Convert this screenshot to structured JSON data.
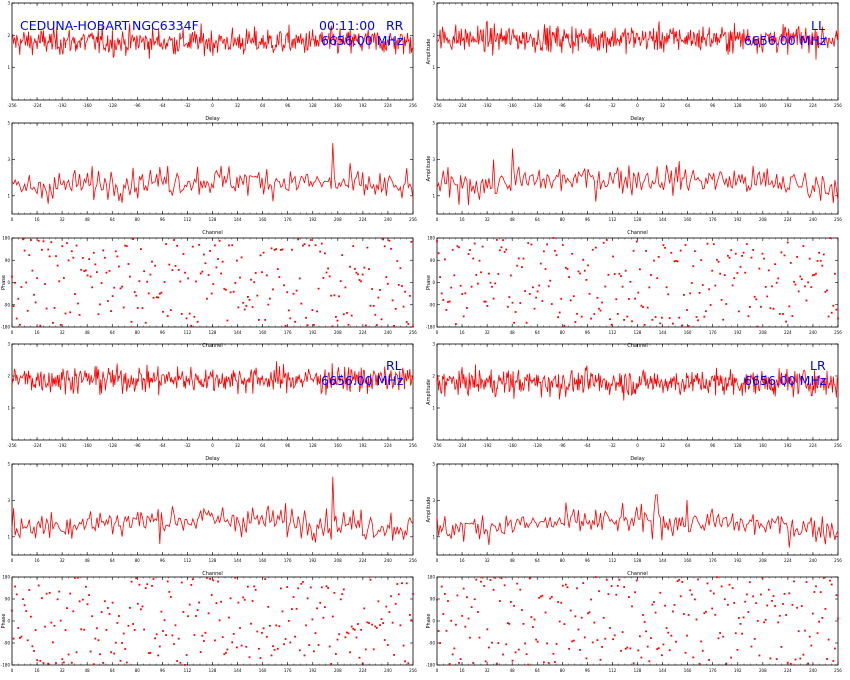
{
  "figure": {
    "baseline": "CEDUNA-HOBART",
    "source": "NGC6334F",
    "time": "00:11:00",
    "frequency": "6656.00 MHz"
  },
  "colors": {
    "trace": "#ff0000",
    "annotation": "#0000ff",
    "axes": "#000000"
  },
  "chart_data": [
    {
      "id": "RR-delay",
      "type": "line",
      "polarisation": "RR",
      "frequency": "6656.00 MHz",
      "xlabel": "Delay",
      "ylabel": "",
      "xlim": [
        -256,
        256
      ],
      "ylim": [
        0,
        3
      ],
      "xticks": [
        -256,
        -224,
        -192,
        -160,
        -128,
        -96,
        -64,
        -32,
        0,
        32,
        64,
        96,
        128,
        160,
        192,
        224,
        256
      ],
      "yticks": [
        1,
        2,
        3
      ],
      "n_points": 512,
      "approx_mean": 1.8,
      "approx_noise": 0.35,
      "peak": null
    },
    {
      "id": "RR-channel",
      "type": "line",
      "polarisation": "RR",
      "xlabel": "Channel",
      "ylabel": "",
      "xlim": [
        0,
        256
      ],
      "ylim": [
        0,
        5
      ],
      "xticks": [
        0,
        16,
        32,
        48,
        64,
        80,
        96,
        112,
        128,
        144,
        160,
        176,
        192,
        208,
        224,
        240,
        256
      ],
      "yticks": [
        1,
        3,
        5
      ],
      "n_points": 256,
      "approx_mean": 1.6,
      "approx_noise": 0.7,
      "peak": {
        "x": 205,
        "y": 3.9
      }
    },
    {
      "id": "RR-phase",
      "type": "scatter",
      "polarisation": "RR",
      "xlabel": "Channel",
      "ylabel": "Phase",
      "xlim": [
        0,
        256
      ],
      "ylim": [
        -180,
        180
      ],
      "xticks": [
        0,
        16,
        32,
        48,
        64,
        80,
        96,
        112,
        128,
        144,
        160,
        176,
        192,
        208,
        224,
        240,
        256
      ],
      "yticks": [
        -180,
        -90,
        0,
        90,
        180
      ],
      "n_points": 256,
      "distribution": "uniform"
    },
    {
      "id": "LL-delay",
      "type": "line",
      "polarisation": "LL",
      "frequency": "6656.00 MHz",
      "xlabel": "Delay",
      "ylabel": "Amplitude",
      "xlim": [
        -256,
        256
      ],
      "ylim": [
        0,
        3
      ],
      "xticks": [
        -256,
        -224,
        -192,
        -160,
        -128,
        -96,
        -64,
        -32,
        0,
        32,
        64,
        96,
        128,
        160,
        192,
        224,
        256
      ],
      "yticks": [
        1,
        2,
        3
      ],
      "n_points": 512,
      "approx_mean": 1.9,
      "approx_noise": 0.35,
      "peak": null
    },
    {
      "id": "LL-channel",
      "type": "line",
      "polarisation": "LL",
      "xlabel": "Channel",
      "ylabel": "Amplitude",
      "xlim": [
        0,
        256
      ],
      "ylim": [
        0,
        5
      ],
      "xticks": [
        0,
        16,
        32,
        48,
        64,
        80,
        96,
        112,
        128,
        144,
        160,
        176,
        192,
        208,
        224,
        240,
        256
      ],
      "yticks": [
        1,
        3,
        5
      ],
      "n_points": 256,
      "approx_mean": 1.7,
      "approx_noise": 0.7,
      "peak": {
        "x": 48,
        "y": 3.6
      }
    },
    {
      "id": "LL-phase",
      "type": "scatter",
      "polarisation": "LL",
      "xlabel": "Channel",
      "ylabel": "Phase",
      "xlim": [
        0,
        256
      ],
      "ylim": [
        -180,
        180
      ],
      "xticks": [
        0,
        16,
        32,
        48,
        64,
        80,
        96,
        112,
        128,
        144,
        160,
        176,
        192,
        208,
        224,
        240,
        256
      ],
      "yticks": [
        -180,
        -90,
        0,
        90,
        180
      ],
      "n_points": 256,
      "distribution": "uniform"
    },
    {
      "id": "RL-delay",
      "type": "line",
      "polarisation": "RL",
      "frequency": "6656.00 MHz",
      "xlabel": "Delay",
      "ylabel": "",
      "xlim": [
        -256,
        256
      ],
      "ylim": [
        0,
        3
      ],
      "xticks": [
        -256,
        -224,
        -192,
        -160,
        -128,
        -96,
        -64,
        -32,
        0,
        32,
        64,
        96,
        128,
        160,
        192,
        224,
        256
      ],
      "yticks": [
        1,
        2,
        3
      ],
      "n_points": 512,
      "approx_mean": 1.9,
      "approx_noise": 0.35,
      "peak": null
    },
    {
      "id": "RL-channel",
      "type": "line",
      "polarisation": "RL",
      "xlabel": "Channel",
      "ylabel": "",
      "xlim": [
        0,
        256
      ],
      "ylim": [
        0,
        5
      ],
      "xticks": [
        0,
        16,
        32,
        48,
        64,
        80,
        96,
        112,
        128,
        144,
        160,
        176,
        192,
        208,
        224,
        240,
        256
      ],
      "yticks": [
        1,
        3,
        5
      ],
      "n_points": 256,
      "approx_mean": 1.7,
      "approx_noise": 0.7,
      "peak": {
        "x": 205,
        "y": 4.3
      }
    },
    {
      "id": "RL-phase",
      "type": "scatter",
      "polarisation": "RL",
      "xlabel": "Channel",
      "ylabel": "Phase",
      "xlim": [
        0,
        256
      ],
      "ylim": [
        -180,
        180
      ],
      "xticks": [
        0,
        16,
        32,
        48,
        64,
        80,
        96,
        112,
        128,
        144,
        160,
        176,
        192,
        208,
        224,
        240,
        256
      ],
      "yticks": [
        -180,
        -90,
        0,
        90,
        180
      ],
      "n_points": 256,
      "distribution": "uniform"
    },
    {
      "id": "LR-delay",
      "type": "line",
      "polarisation": "LR",
      "frequency": "6656.00 MHz",
      "xlabel": "Delay",
      "ylabel": "Amplitude",
      "xlim": [
        -256,
        256
      ],
      "ylim": [
        0,
        3
      ],
      "xticks": [
        -256,
        -224,
        -192,
        -160,
        -128,
        -96,
        -64,
        -32,
        0,
        32,
        64,
        96,
        128,
        160,
        192,
        224,
        256
      ],
      "yticks": [
        1,
        2,
        3
      ],
      "n_points": 512,
      "approx_mean": 1.8,
      "approx_noise": 0.35,
      "peak": null
    },
    {
      "id": "LR-channel",
      "type": "line",
      "polarisation": "LR",
      "xlabel": "Channel",
      "ylabel": "Amplitude",
      "xlim": [
        0,
        256
      ],
      "ylim": [
        0,
        5
      ],
      "xticks": [
        0,
        16,
        32,
        48,
        64,
        80,
        96,
        112,
        128,
        144,
        160,
        176,
        192,
        208,
        224,
        240,
        256
      ],
      "yticks": [
        1,
        3,
        5
      ],
      "n_points": 256,
      "approx_mean": 1.6,
      "approx_noise": 0.65,
      "peak": {
        "x": 140,
        "y": 3.3
      }
    },
    {
      "id": "LR-phase",
      "type": "scatter",
      "polarisation": "LR",
      "xlabel": "Channel",
      "ylabel": "Phase",
      "xlim": [
        0,
        256
      ],
      "ylim": [
        -180,
        180
      ],
      "xticks": [
        0,
        16,
        32,
        48,
        64,
        80,
        96,
        112,
        128,
        144,
        160,
        176,
        192,
        208,
        224,
        240,
        256
      ],
      "yticks": [
        -180,
        -90,
        0,
        90,
        180
      ],
      "n_points": 256,
      "distribution": "uniform"
    }
  ]
}
